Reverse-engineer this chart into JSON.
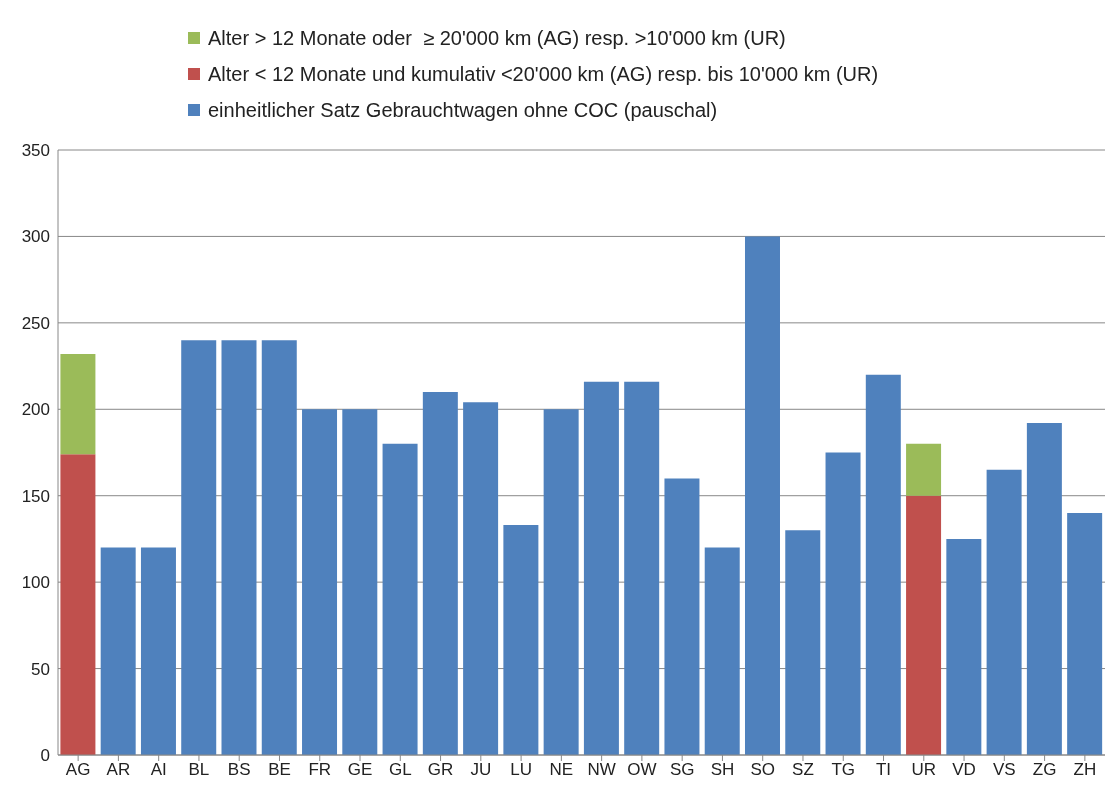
{
  "chart_data": {
    "type": "bar",
    "stacked": true,
    "categories": [
      "AG",
      "AR",
      "AI",
      "BL",
      "BS",
      "BE",
      "FR",
      "GE",
      "GL",
      "GR",
      "JU",
      "LU",
      "NE",
      "NW",
      "OW",
      "SG",
      "SH",
      "SO",
      "SZ",
      "TG",
      "TI",
      "UR",
      "VD",
      "VS",
      "ZG",
      "ZH"
    ],
    "series": [
      {
        "name": "einheitlicher Satz Gebrauchtwagen ohne COC (pauschal)",
        "color": "#4f81bd",
        "values": [
          null,
          120,
          120,
          240,
          240,
          240,
          200,
          200,
          180,
          210,
          204,
          133,
          200,
          216,
          216,
          160,
          120,
          300,
          130,
          175,
          220,
          null,
          125,
          165,
          192,
          140
        ]
      },
      {
        "name": "Alter < 12 Monate und kumulativ <20'000 km (AG) resp. bis 10'000 km (UR)",
        "color": "#c0504d",
        "values": [
          174,
          null,
          null,
          null,
          null,
          null,
          null,
          null,
          null,
          null,
          null,
          null,
          null,
          null,
          null,
          null,
          null,
          null,
          null,
          null,
          null,
          150,
          null,
          null,
          null,
          null
        ]
      },
      {
        "name": "Alter > 12 Monate oder  ≥ 20'000 km (AG) resp. >10'000 km (UR)",
        "color": "#9bbb59",
        "values": [
          58,
          null,
          null,
          null,
          null,
          null,
          null,
          null,
          null,
          null,
          null,
          null,
          null,
          null,
          null,
          null,
          null,
          null,
          null,
          null,
          null,
          30,
          null,
          null,
          null,
          null
        ]
      }
    ],
    "ylim": [
      0,
      350
    ],
    "yticks": [
      0,
      50,
      100,
      150,
      200,
      250,
      300,
      350
    ],
    "grid": "y",
    "legend": "top"
  }
}
